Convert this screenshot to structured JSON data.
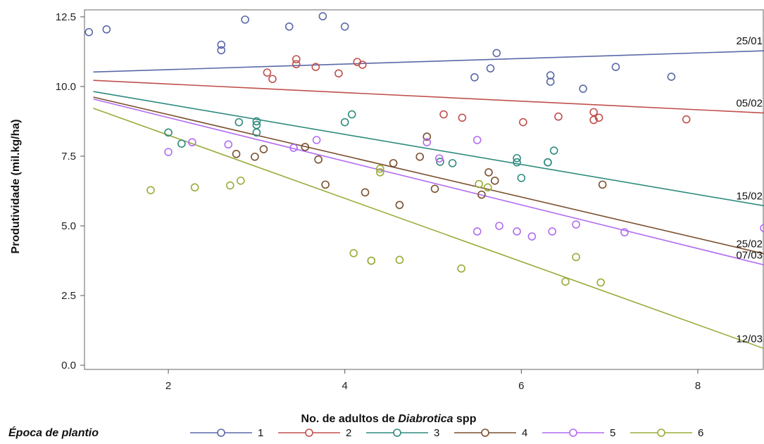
{
  "chart_data": {
    "type": "scatter",
    "title": "",
    "xlabel": "No. de adultos de ",
    "xlabel_italic": "Diabrotica",
    "xlabel_suffix": " spp",
    "ylabel": "Produtividade (mil.kg/ha)",
    "xlim": [
      1.05,
      8.75
    ],
    "ylim": [
      -0.15,
      12.75
    ],
    "xticks": [
      2,
      4,
      6,
      8
    ],
    "yticks": [
      0.0,
      2.5,
      5.0,
      7.5,
      10.0,
      12.5
    ],
    "ytick_labels": [
      "0.0",
      "2.5",
      "5.0",
      "7.5",
      "10.0",
      "12.5"
    ],
    "grid": false,
    "legend_title": "Época de plantio",
    "legend_position": "bottom",
    "series": [
      {
        "name": "1",
        "color": "#5a69a8",
        "line_label": "25/01",
        "fit": [
          [
            1.15,
            10.52
          ],
          [
            8.75,
            11.28
          ]
        ],
        "points": [
          [
            1.1,
            11.95
          ],
          [
            1.3,
            12.05
          ],
          [
            2.6,
            11.5
          ],
          [
            2.6,
            11.3
          ],
          [
            2.87,
            12.4
          ],
          [
            3.37,
            12.15
          ],
          [
            3.75,
            12.52
          ],
          [
            4.0,
            12.15
          ],
          [
            5.47,
            10.33
          ],
          [
            5.65,
            10.65
          ],
          [
            5.72,
            11.2
          ],
          [
            6.33,
            10.4
          ],
          [
            6.33,
            10.17
          ],
          [
            6.7,
            9.92
          ],
          [
            7.07,
            10.7
          ],
          [
            7.7,
            10.35
          ]
        ]
      },
      {
        "name": "2",
        "color": "#c0504d",
        "line_label": "05/02",
        "fit": [
          [
            1.15,
            10.22
          ],
          [
            8.75,
            9.05
          ]
        ],
        "points": [
          [
            3.12,
            10.5
          ],
          [
            3.18,
            10.27
          ],
          [
            3.45,
            10.98
          ],
          [
            3.45,
            10.8
          ],
          [
            3.67,
            10.7
          ],
          [
            3.93,
            10.47
          ],
          [
            4.14,
            10.88
          ],
          [
            4.2,
            10.78
          ],
          [
            5.12,
            9.0
          ],
          [
            5.33,
            8.88
          ],
          [
            6.02,
            8.72
          ],
          [
            6.42,
            8.92
          ],
          [
            6.82,
            9.08
          ],
          [
            6.82,
            8.8
          ],
          [
            6.88,
            8.88
          ],
          [
            7.87,
            8.82
          ]
        ]
      },
      {
        "name": "3",
        "color": "#2e8b7f",
        "line_label": "15/02",
        "fit": [
          [
            1.15,
            9.82
          ],
          [
            8.75,
            5.72
          ]
        ],
        "points": [
          [
            2.0,
            8.35
          ],
          [
            2.15,
            7.95
          ],
          [
            2.8,
            8.72
          ],
          [
            3.0,
            8.75
          ],
          [
            3.0,
            8.62
          ],
          [
            3.0,
            8.35
          ],
          [
            4.0,
            8.72
          ],
          [
            4.08,
            9.0
          ],
          [
            5.08,
            7.3
          ],
          [
            5.22,
            7.25
          ],
          [
            5.95,
            7.43
          ],
          [
            5.95,
            7.28
          ],
          [
            6.0,
            6.72
          ],
          [
            6.3,
            7.28
          ],
          [
            6.3,
            7.28
          ],
          [
            6.37,
            7.7
          ]
        ]
      },
      {
        "name": "4",
        "color": "#7b4f2e",
        "line_label": "25/02",
        "fit": [
          [
            1.15,
            9.62
          ],
          [
            8.75,
            4.0
          ]
        ],
        "points": [
          [
            2.77,
            7.58
          ],
          [
            2.98,
            7.48
          ],
          [
            3.08,
            7.75
          ],
          [
            3.55,
            7.83
          ],
          [
            3.7,
            7.38
          ],
          [
            3.78,
            6.48
          ],
          [
            4.23,
            6.2
          ],
          [
            4.55,
            7.25
          ],
          [
            4.62,
            5.75
          ],
          [
            4.85,
            7.48
          ],
          [
            4.93,
            8.2
          ],
          [
            5.02,
            6.33
          ],
          [
            5.55,
            6.12
          ],
          [
            5.63,
            6.92
          ],
          [
            5.7,
            6.62
          ],
          [
            6.92,
            6.48
          ]
        ]
      },
      {
        "name": "5",
        "color": "#b26cf0",
        "line_label": "07/03",
        "fit": [
          [
            1.15,
            9.55
          ],
          [
            8.75,
            3.6
          ]
        ],
        "points": [
          [
            2.0,
            7.65
          ],
          [
            2.27,
            8.0
          ],
          [
            2.68,
            7.92
          ],
          [
            3.42,
            7.8
          ],
          [
            3.68,
            8.08
          ],
          [
            4.93,
            8.0
          ],
          [
            5.07,
            7.42
          ],
          [
            5.5,
            8.08
          ],
          [
            5.5,
            4.8
          ],
          [
            5.75,
            5.0
          ],
          [
            5.95,
            4.8
          ],
          [
            6.12,
            4.62
          ],
          [
            6.35,
            4.8
          ],
          [
            6.62,
            5.05
          ],
          [
            7.17,
            4.77
          ],
          [
            8.75,
            4.92
          ]
        ]
      },
      {
        "name": "6",
        "color": "#9aab3a",
        "line_label": "12/03",
        "fit": [
          [
            1.15,
            9.22
          ],
          [
            8.75,
            0.6
          ]
        ],
        "points": [
          [
            1.8,
            6.28
          ],
          [
            2.3,
            6.38
          ],
          [
            2.7,
            6.45
          ],
          [
            2.82,
            6.62
          ],
          [
            4.1,
            4.02
          ],
          [
            4.3,
            3.75
          ],
          [
            4.3,
            3.75
          ],
          [
            4.4,
            7.05
          ],
          [
            4.4,
            6.92
          ],
          [
            4.62,
            3.78
          ],
          [
            5.32,
            3.47
          ],
          [
            5.52,
            6.5
          ],
          [
            5.62,
            6.38
          ],
          [
            6.5,
            3.0
          ],
          [
            6.62,
            3.88
          ],
          [
            6.9,
            2.97
          ]
        ]
      }
    ]
  }
}
